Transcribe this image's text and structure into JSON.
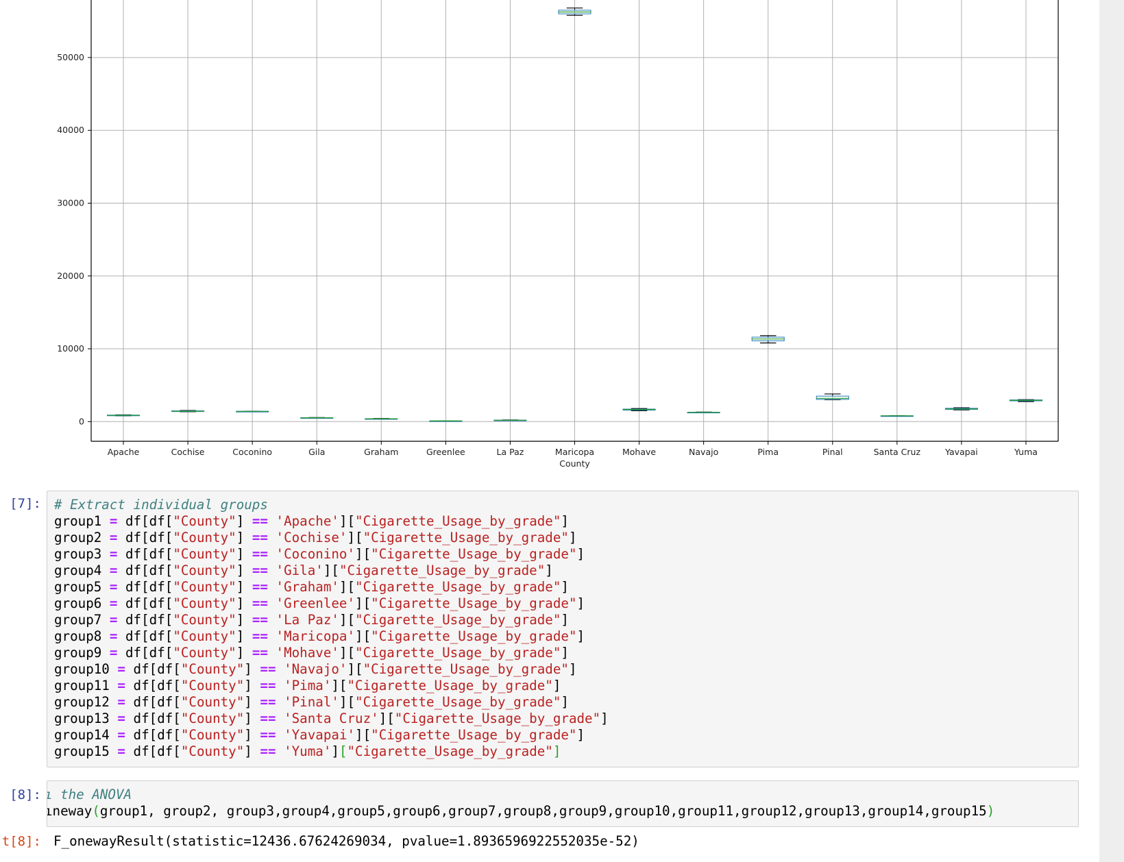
{
  "chart_data": {
    "type": "box",
    "categories": [
      "Apache",
      "Cochise",
      "Coconino",
      "Gila",
      "Graham",
      "Greenlee",
      "La Paz",
      "Maricopa\nCounty",
      "Mohave",
      "Navajo",
      "Pima",
      "Pinal",
      "Santa Cruz",
      "Yavapai",
      "Yuma"
    ],
    "yticks": [
      0,
      10000,
      20000,
      30000,
      40000,
      50000
    ],
    "ylim": [
      -2700,
      57900
    ],
    "grid": true,
    "boxes": [
      {
        "min": 800,
        "q1": 830,
        "median": 860,
        "q3": 900,
        "max": 930
      },
      {
        "min": 1350,
        "q1": 1380,
        "median": 1420,
        "q3": 1480,
        "max": 1530
      },
      {
        "min": 1380,
        "q1": 1390,
        "median": 1410,
        "q3": 1420,
        "max": 1430
      },
      {
        "min": 480,
        "q1": 500,
        "median": 520,
        "q3": 540,
        "max": 560
      },
      {
        "min": 350,
        "q1": 370,
        "median": 390,
        "q3": 410,
        "max": 430
      },
      {
        "min": 90,
        "q1": 95,
        "median": 100,
        "q3": 105,
        "max": 110
      },
      {
        "min": 150,
        "q1": 170,
        "median": 190,
        "q3": 210,
        "max": 230
      },
      {
        "min": 55800,
        "q1": 56000,
        "median": 56250,
        "q3": 56500,
        "max": 56800
      },
      {
        "min": 1500,
        "q1": 1580,
        "median": 1650,
        "q3": 1720,
        "max": 1800
      },
      {
        "min": 1230,
        "q1": 1250,
        "median": 1270,
        "q3": 1290,
        "max": 1310
      },
      {
        "min": 10800,
        "q1": 11100,
        "median": 11350,
        "q3": 11600,
        "max": 11800
      },
      {
        "min": 3000,
        "q1": 3050,
        "median": 3200,
        "q3": 3500,
        "max": 3800
      },
      {
        "min": 790,
        "q1": 795,
        "median": 800,
        "q3": 805,
        "max": 810
      },
      {
        "min": 1620,
        "q1": 1680,
        "median": 1750,
        "q3": 1830,
        "max": 1900
      },
      {
        "min": 2750,
        "q1": 2850,
        "median": 2920,
        "q3": 2980,
        "max": 3020
      }
    ]
  },
  "cells": {
    "cell7": {
      "prompt": "[7]:",
      "lines": [
        [
          [
            "cm",
            "# Extract individual groups"
          ]
        ],
        [
          [
            "p",
            "group1 "
          ],
          [
            "o",
            "="
          ],
          [
            "p",
            " df[df["
          ],
          [
            "s",
            "\"County\""
          ],
          [
            "p",
            "] "
          ],
          [
            "o",
            "=="
          ],
          [
            "p",
            " "
          ],
          [
            "s",
            "'Apache'"
          ],
          [
            "p",
            "]["
          ],
          [
            "s",
            "\"Cigarette_Usage_by_grade\""
          ],
          [
            "p",
            "]"
          ]
        ],
        [
          [
            "p",
            "group2 "
          ],
          [
            "o",
            "="
          ],
          [
            "p",
            " df[df["
          ],
          [
            "s",
            "\"County\""
          ],
          [
            "p",
            "] "
          ],
          [
            "o",
            "=="
          ],
          [
            "p",
            " "
          ],
          [
            "s",
            "'Cochise'"
          ],
          [
            "p",
            "]["
          ],
          [
            "s",
            "\"Cigarette_Usage_by_grade\""
          ],
          [
            "p",
            "]"
          ]
        ],
        [
          [
            "p",
            "group3 "
          ],
          [
            "o",
            "="
          ],
          [
            "p",
            " df[df["
          ],
          [
            "s",
            "\"County\""
          ],
          [
            "p",
            "] "
          ],
          [
            "o",
            "=="
          ],
          [
            "p",
            " "
          ],
          [
            "s",
            "'Coconino'"
          ],
          [
            "p",
            "]["
          ],
          [
            "s",
            "\"Cigarette_Usage_by_grade\""
          ],
          [
            "p",
            "]"
          ]
        ],
        [
          [
            "p",
            "group4 "
          ],
          [
            "o",
            "="
          ],
          [
            "p",
            " df[df["
          ],
          [
            "s",
            "\"County\""
          ],
          [
            "p",
            "] "
          ],
          [
            "o",
            "=="
          ],
          [
            "p",
            " "
          ],
          [
            "s",
            "'Gila'"
          ],
          [
            "p",
            "]["
          ],
          [
            "s",
            "\"Cigarette_Usage_by_grade\""
          ],
          [
            "p",
            "]"
          ]
        ],
        [
          [
            "p",
            "group5 "
          ],
          [
            "o",
            "="
          ],
          [
            "p",
            " df[df["
          ],
          [
            "s",
            "\"County\""
          ],
          [
            "p",
            "] "
          ],
          [
            "o",
            "=="
          ],
          [
            "p",
            " "
          ],
          [
            "s",
            "'Graham'"
          ],
          [
            "p",
            "]["
          ],
          [
            "s",
            "\"Cigarette_Usage_by_grade\""
          ],
          [
            "p",
            "]"
          ]
        ],
        [
          [
            "p",
            "group6 "
          ],
          [
            "o",
            "="
          ],
          [
            "p",
            " df[df["
          ],
          [
            "s",
            "\"County\""
          ],
          [
            "p",
            "] "
          ],
          [
            "o",
            "=="
          ],
          [
            "p",
            " "
          ],
          [
            "s",
            "'Greenlee'"
          ],
          [
            "p",
            "]["
          ],
          [
            "s",
            "\"Cigarette_Usage_by_grade\""
          ],
          [
            "p",
            "]"
          ]
        ],
        [
          [
            "p",
            "group7 "
          ],
          [
            "o",
            "="
          ],
          [
            "p",
            " df[df["
          ],
          [
            "s",
            "\"County\""
          ],
          [
            "p",
            "] "
          ],
          [
            "o",
            "=="
          ],
          [
            "p",
            " "
          ],
          [
            "s",
            "'La Paz'"
          ],
          [
            "p",
            "]["
          ],
          [
            "s",
            "\"Cigarette_Usage_by_grade\""
          ],
          [
            "p",
            "]"
          ]
        ],
        [
          [
            "p",
            "group8 "
          ],
          [
            "o",
            "="
          ],
          [
            "p",
            " df[df["
          ],
          [
            "s",
            "\"County\""
          ],
          [
            "p",
            "] "
          ],
          [
            "o",
            "=="
          ],
          [
            "p",
            " "
          ],
          [
            "s",
            "'Maricopa'"
          ],
          [
            "p",
            "]["
          ],
          [
            "s",
            "\"Cigarette_Usage_by_grade\""
          ],
          [
            "p",
            "]"
          ]
        ],
        [
          [
            "p",
            "group9 "
          ],
          [
            "o",
            "="
          ],
          [
            "p",
            " df[df["
          ],
          [
            "s",
            "\"County\""
          ],
          [
            "p",
            "] "
          ],
          [
            "o",
            "=="
          ],
          [
            "p",
            " "
          ],
          [
            "s",
            "'Mohave'"
          ],
          [
            "p",
            "]["
          ],
          [
            "s",
            "\"Cigarette_Usage_by_grade\""
          ],
          [
            "p",
            "]"
          ]
        ],
        [
          [
            "p",
            "group10 "
          ],
          [
            "o",
            "="
          ],
          [
            "p",
            " df[df["
          ],
          [
            "s",
            "\"County\""
          ],
          [
            "p",
            "] "
          ],
          [
            "o",
            "=="
          ],
          [
            "p",
            " "
          ],
          [
            "s",
            "'Navajo'"
          ],
          [
            "p",
            "]["
          ],
          [
            "s",
            "\"Cigarette_Usage_by_grade\""
          ],
          [
            "p",
            "]"
          ]
        ],
        [
          [
            "p",
            "group11 "
          ],
          [
            "o",
            "="
          ],
          [
            "p",
            " df[df["
          ],
          [
            "s",
            "\"County\""
          ],
          [
            "p",
            "] "
          ],
          [
            "o",
            "=="
          ],
          [
            "p",
            " "
          ],
          [
            "s",
            "'Pima'"
          ],
          [
            "p",
            "]["
          ],
          [
            "s",
            "\"Cigarette_Usage_by_grade\""
          ],
          [
            "p",
            "]"
          ]
        ],
        [
          [
            "p",
            "group12 "
          ],
          [
            "o",
            "="
          ],
          [
            "p",
            " df[df["
          ],
          [
            "s",
            "\"County\""
          ],
          [
            "p",
            "] "
          ],
          [
            "o",
            "=="
          ],
          [
            "p",
            " "
          ],
          [
            "s",
            "'Pinal'"
          ],
          [
            "p",
            "]["
          ],
          [
            "s",
            "\"Cigarette_Usage_by_grade\""
          ],
          [
            "p",
            "]"
          ]
        ],
        [
          [
            "p",
            "group13 "
          ],
          [
            "o",
            "="
          ],
          [
            "p",
            " df[df["
          ],
          [
            "s",
            "\"County\""
          ],
          [
            "p",
            "] "
          ],
          [
            "o",
            "=="
          ],
          [
            "p",
            " "
          ],
          [
            "s",
            "'Santa Cruz'"
          ],
          [
            "p",
            "]["
          ],
          [
            "s",
            "\"Cigarette_Usage_by_grade\""
          ],
          [
            "p",
            "]"
          ]
        ],
        [
          [
            "p",
            "group14 "
          ],
          [
            "o",
            "="
          ],
          [
            "p",
            " df[df["
          ],
          [
            "s",
            "\"County\""
          ],
          [
            "p",
            "] "
          ],
          [
            "o",
            "=="
          ],
          [
            "p",
            " "
          ],
          [
            "s",
            "'Yavapai'"
          ],
          [
            "p",
            "]["
          ],
          [
            "s",
            "\"Cigarette_Usage_by_grade\""
          ],
          [
            "p",
            "]"
          ]
        ],
        [
          [
            "p",
            "group15 "
          ],
          [
            "o",
            "="
          ],
          [
            "p",
            " df[df["
          ],
          [
            "s",
            "\"County\""
          ],
          [
            "p",
            "] "
          ],
          [
            "o",
            "=="
          ],
          [
            "p",
            " "
          ],
          [
            "s",
            "'Yuma'"
          ],
          [
            "p",
            "]"
          ],
          [
            "pg",
            "["
          ],
          [
            "s",
            "\"Cigarette_Usage_by_grade\""
          ],
          [
            "pg",
            "]"
          ]
        ]
      ]
    },
    "cell8": {
      "prompt": "[8]:",
      "lines": [
        [
          [
            "cm",
            "ı the ANOVA"
          ]
        ],
        [
          [
            "p",
            "ıneway"
          ],
          [
            "pg",
            "("
          ],
          [
            "p",
            "group1, group2, group3,group4,group5,group6,group7,group8,group9,group10,group11,group12,group13,group14,group15"
          ],
          [
            "pg",
            ")"
          ]
        ]
      ]
    },
    "out8": {
      "prompt": "t[8]:",
      "text": "F_onewayResult(statistic=12436.67624269034, pvalue=1.8936596922552035e-52)"
    }
  },
  "colors": {
    "box": "#1f77b4",
    "median": "#2ca02c",
    "whisker": "#000000",
    "grid": "#b0b0b0"
  }
}
